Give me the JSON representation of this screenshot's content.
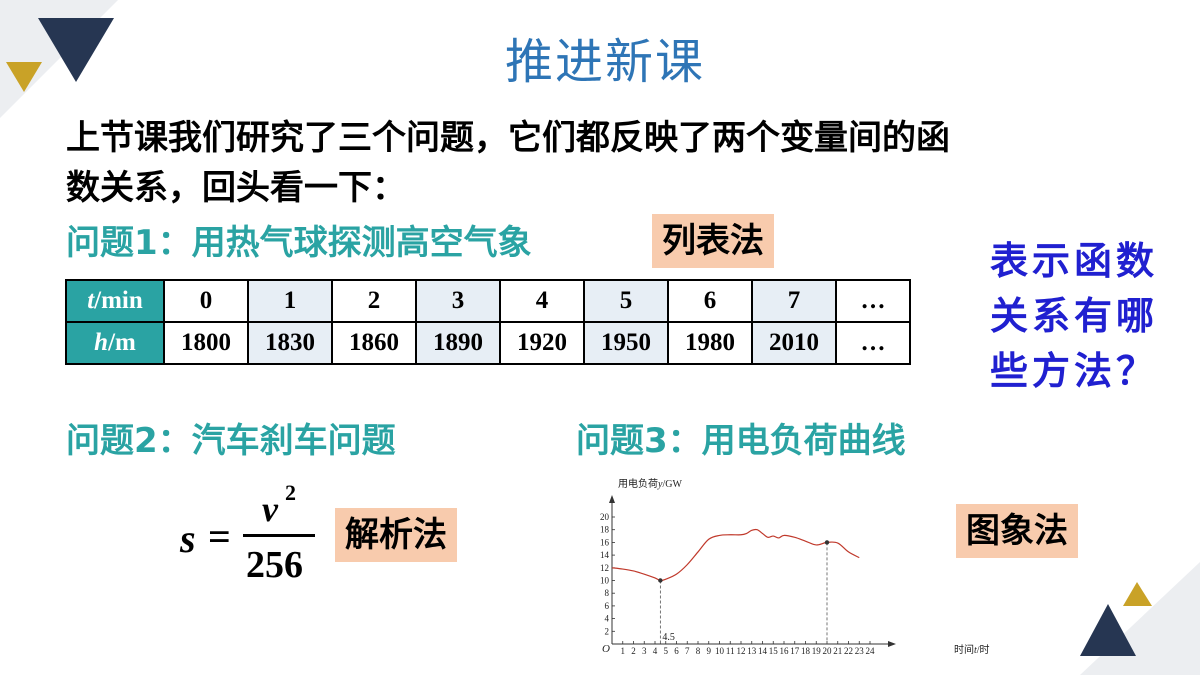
{
  "page": {
    "title": "推进新课",
    "intro_line1": "上节课我们研究了三个问题，它们都反映了两个变量间的函",
    "intro_line2": "数关系，回头看一下：",
    "side_note": [
      "表示函数",
      "关系有哪",
      "些方法？"
    ]
  },
  "problem1": {
    "title": "问题1：用热气球探测高空气象",
    "method": "列表法",
    "table": {
      "row_t_var": "t",
      "row_t_unit": "/min",
      "row_h_var": "h",
      "row_h_unit": "/m",
      "t_values": [
        "0",
        "1",
        "2",
        "3",
        "4",
        "5",
        "6",
        "7",
        "…"
      ],
      "h_values": [
        "1800",
        "1830",
        "1860",
        "1890",
        "1920",
        "1950",
        "1980",
        "2010",
        "…"
      ]
    }
  },
  "problem2": {
    "title": "问题2：汽车刹车问题",
    "method": "解析法",
    "formula": {
      "lhs": "s",
      "eq": "=",
      "num_var": "v",
      "num_exp": "2",
      "den": "256"
    }
  },
  "problem3": {
    "title": "问题3：用电负荷曲线",
    "method": "图象法"
  },
  "chart_data": {
    "type": "line",
    "ylabel_prefix": "用电负荷",
    "ylabel_var": "y",
    "ylabel_unit": "/GW",
    "xlabel_prefix": "时间",
    "xlabel_var": "t",
    "xlabel_unit": "/时",
    "origin_label": "O",
    "xlim": [
      0,
      24
    ],
    "ylim": [
      0,
      20
    ],
    "x_ticks": [
      "1",
      "2",
      "3",
      "4",
      "5",
      "6",
      "7",
      "8",
      "9",
      "10",
      "11",
      "12",
      "13",
      "14",
      "15",
      "16",
      "17",
      "18",
      "19",
      "20",
      "21",
      "22",
      "23",
      "24"
    ],
    "y_ticks": [
      "2",
      "4",
      "6",
      "8",
      "10",
      "12",
      "14",
      "16",
      "18",
      "20"
    ],
    "line_color": "#c0392b",
    "x": [
      0,
      1,
      2,
      3,
      4,
      4.5,
      5,
      6,
      7,
      8,
      9,
      10,
      11,
      12,
      12.5,
      13,
      13.5,
      14,
      14.5,
      15,
      15.5,
      16,
      17,
      18,
      19,
      20,
      21,
      22,
      23
    ],
    "y": [
      12,
      11.8,
      11.5,
      11,
      10.4,
      10,
      10.2,
      11,
      12.5,
      14.5,
      16.5,
      17.1,
      17.2,
      17.2,
      17.4,
      17.9,
      18,
      17.4,
      16.8,
      17,
      16.7,
      17.1,
      16.8,
      16.2,
      15.6,
      16,
      15.9,
      14.5,
      13.6
    ],
    "annotations": [
      {
        "x": 4.5,
        "y": 10,
        "label": "4.5"
      },
      {
        "x": 20,
        "y": 16,
        "label": ""
      }
    ],
    "annotation_label": "4.5"
  },
  "colors": {
    "title": "#2e75b6",
    "question": "#2aa3a3",
    "tag_bg": "#f8cbad",
    "side_note": "#2020d0",
    "table_header": "#2aa3a3",
    "table_shade": "#e7eef5",
    "deco_navy": "#263652",
    "deco_gold": "#c9a227"
  }
}
